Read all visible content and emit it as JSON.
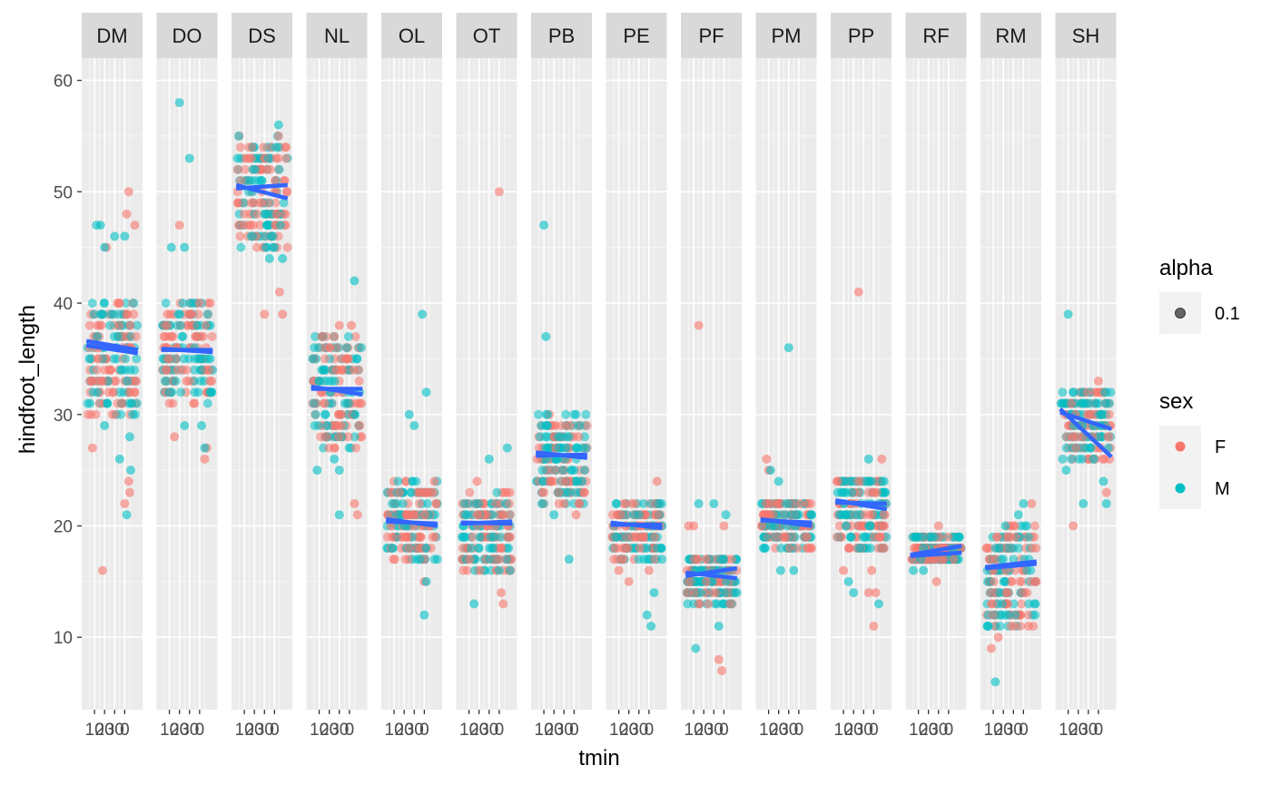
{
  "chart_data": {
    "type": "scatter",
    "facets": [
      "DM",
      "DO",
      "DS",
      "NL",
      "OL",
      "OT",
      "PB",
      "PE",
      "PF",
      "PM",
      "PP",
      "RF",
      "RM",
      "SH"
    ],
    "xlabel": "tmin",
    "ylabel": "hindfoot_length",
    "x_tick_labels": [
      "10",
      "20",
      "30",
      "0"
    ],
    "y_ticks": [
      10,
      20,
      30,
      40,
      50,
      60
    ],
    "ylim": [
      3.5,
      62
    ],
    "grid": true,
    "legend_position": "right",
    "colors": {
      "F": "#F8766D",
      "M": "#00BFC4",
      "trend": "#3366FF",
      "panel_bg": "#EBEBEB",
      "strip_bg": "#D9D9D9",
      "alpha_key": "#4d4d4d"
    },
    "legend": {
      "alpha": {
        "title": "alpha",
        "entries": [
          "0.1"
        ]
      },
      "sex": {
        "title": "sex",
        "entries": [
          "F",
          "M"
        ]
      }
    },
    "series": [
      {
        "facet": "DM",
        "core": {
          "ymin": 30,
          "ymax": 40,
          "center": 36
        },
        "trend_F": [
          36.2,
          35.5
        ],
        "trend_M": [
          36.6,
          35.8
        ],
        "outliers_F": [
          [
            8,
            27
          ],
          [
            18,
            16
          ],
          [
            22,
            45
          ],
          [
            35,
            38
          ],
          [
            40,
            22
          ],
          [
            42,
            48
          ],
          [
            44,
            50
          ],
          [
            44,
            24
          ],
          [
            45,
            23
          ],
          [
            50,
            47
          ]
        ],
        "outliers_M": [
          [
            12,
            47
          ],
          [
            16,
            47
          ],
          [
            20,
            45
          ],
          [
            20,
            29
          ],
          [
            30,
            46
          ],
          [
            35,
            26
          ],
          [
            40,
            46
          ],
          [
            42,
            21
          ],
          [
            45,
            28
          ],
          [
            46,
            25
          ],
          [
            48,
            30
          ]
        ]
      },
      {
        "facet": "DO",
        "core": {
          "ymin": 31,
          "ymax": 40,
          "center": 35.5
        },
        "trend_F": [
          35.9,
          35.6
        ],
        "trend_M": [
          35.8,
          35.8
        ],
        "outliers_F": [
          [
            15,
            28
          ],
          [
            20,
            47
          ],
          [
            40,
            40
          ],
          [
            45,
            26
          ],
          [
            47,
            27
          ]
        ],
        "outliers_M": [
          [
            12,
            45
          ],
          [
            20,
            58
          ],
          [
            25,
            45
          ],
          [
            25,
            29
          ],
          [
            30,
            53
          ],
          [
            42,
            29
          ],
          [
            45,
            27
          ]
        ]
      },
      {
        "facet": "DS",
        "core": {
          "ymin": 45,
          "ymax": 55,
          "center": 50.5
        },
        "trend_F": [
          50.6,
          49.4
        ],
        "trend_M": [
          50.3,
          50.6
        ],
        "outliers_F": [
          [
            12,
            53
          ],
          [
            30,
            39
          ],
          [
            45,
            41
          ],
          [
            48,
            39
          ]
        ],
        "outliers_M": [
          [
            35,
            44
          ],
          [
            40,
            45
          ],
          [
            44,
            56
          ],
          [
            48,
            44
          ]
        ]
      },
      {
        "facet": "NL",
        "core": {
          "ymin": 27,
          "ymax": 37,
          "center": 32.5
        },
        "trend_F": [
          32.5,
          31.8
        ],
        "trend_M": [
          32.3,
          32.3
        ],
        "outliers_F": [
          [
            25,
            37
          ],
          [
            30,
            38
          ],
          [
            42,
            38
          ],
          [
            45,
            22
          ],
          [
            48,
            21
          ],
          [
            50,
            31
          ]
        ],
        "outliers_M": [
          [
            8,
            25
          ],
          [
            25,
            26
          ],
          [
            30,
            21
          ],
          [
            30,
            25
          ],
          [
            45,
            42
          ]
        ]
      },
      {
        "facet": "OL",
        "core": {
          "ymin": 17,
          "ymax": 24,
          "center": 20.5
        },
        "trend_F": [
          20.6,
          20.0
        ],
        "trend_M": [
          20.4,
          20.2
        ],
        "outliers_F": [
          [
            35,
            23
          ],
          [
            40,
            15
          ],
          [
            50,
            24
          ]
        ],
        "outliers_M": [
          [
            25,
            30
          ],
          [
            30,
            29
          ],
          [
            38,
            39
          ],
          [
            40,
            12
          ],
          [
            42,
            32
          ],
          [
            42,
            15
          ]
        ]
      },
      {
        "facet": "OT",
        "core": {
          "ymin": 16,
          "ymax": 23,
          "center": 20.3
        },
        "trend_F": [
          20.3,
          20.2
        ],
        "trend_M": [
          20.2,
          20.4
        ],
        "outliers_F": [
          [
            18,
            24
          ],
          [
            40,
            50
          ],
          [
            42,
            14
          ],
          [
            44,
            13
          ]
        ],
        "outliers_M": [
          [
            15,
            13
          ],
          [
            30,
            26
          ],
          [
            40,
            16
          ],
          [
            48,
            27
          ]
        ]
      },
      {
        "facet": "PB",
        "core": {
          "ymin": 22,
          "ymax": 30,
          "center": 26.3
        },
        "trend_F": [
          26.6,
          26.1
        ],
        "trend_M": [
          26.3,
          26.4
        ],
        "outliers_F": [
          [
            25,
            23
          ],
          [
            30,
            22
          ],
          [
            42,
            21
          ],
          [
            45,
            22
          ]
        ],
        "outliers_M": [
          [
            8,
            22
          ],
          [
            10,
            47
          ],
          [
            12,
            37
          ],
          [
            20,
            21
          ],
          [
            35,
            17
          ]
        ]
      },
      {
        "facet": "PE",
        "core": {
          "ymin": 17,
          "ymax": 22,
          "center": 20.1
        },
        "trend_F": [
          20.3,
          19.8
        ],
        "trend_M": [
          20.1,
          20.1
        ],
        "outliers_F": [
          [
            10,
            16
          ],
          [
            20,
            15
          ],
          [
            40,
            16
          ],
          [
            48,
            24
          ]
        ],
        "outliers_M": [
          [
            38,
            12
          ],
          [
            42,
            11
          ],
          [
            45,
            14
          ]
        ]
      },
      {
        "facet": "PF",
        "core": {
          "ymin": 13,
          "ymax": 17.5,
          "center": 15.7
        },
        "trend_F": [
          15.8,
          15.3
        ],
        "trend_M": [
          15.5,
          16.2
        ],
        "outliers_F": [
          [
            5,
            20
          ],
          [
            10,
            20
          ],
          [
            15,
            38
          ],
          [
            35,
            8
          ],
          [
            38,
            7
          ],
          [
            40,
            20
          ]
        ],
        "outliers_M": [
          [
            12,
            9
          ],
          [
            15,
            22
          ],
          [
            30,
            22
          ],
          [
            35,
            11
          ],
          [
            42,
            21
          ]
        ]
      },
      {
        "facet": "PM",
        "core": {
          "ymin": 18,
          "ymax": 22.5,
          "center": 20.5
        },
        "trend_F": [
          20.6,
          20.0
        ],
        "trend_M": [
          20.5,
          20.3
        ],
        "outliers_F": [
          [
            8,
            26
          ],
          [
            10,
            25
          ],
          [
            48,
            18
          ]
        ],
        "outliers_M": [
          [
            12,
            25
          ],
          [
            20,
            24
          ],
          [
            22,
            16
          ],
          [
            30,
            36
          ],
          [
            35,
            16
          ]
        ]
      },
      {
        "facet": "PP",
        "core": {
          "ymin": 18,
          "ymax": 24.5,
          "center": 22
        },
        "trend_F": [
          22.3,
          21.5
        ],
        "trend_M": [
          22.1,
          22.0
        ],
        "outliers_F": [
          [
            10,
            16
          ],
          [
            25,
            41
          ],
          [
            35,
            14
          ],
          [
            38,
            16
          ],
          [
            40,
            11
          ],
          [
            42,
            14
          ],
          [
            48,
            26
          ]
        ],
        "outliers_M": [
          [
            15,
            15
          ],
          [
            20,
            14
          ],
          [
            35,
            26
          ],
          [
            45,
            13
          ]
        ]
      },
      {
        "facet": "RF",
        "core": {
          "ymin": 16.5,
          "ymax": 19.2,
          "center": 17.7
        },
        "trend_F": [
          17.3,
          17.6
        ],
        "trend_M": [
          17.4,
          18.2
        ],
        "outliers_F": [
          [
            28,
            15
          ],
          [
            30,
            20
          ],
          [
            45,
            17
          ]
        ],
        "outliers_M": [
          [
            5,
            16
          ],
          [
            15,
            16
          ]
        ]
      },
      {
        "facet": "RM",
        "core": {
          "ymin": 11,
          "ymax": 20,
          "center": 16.3
        },
        "trend_F": [
          16.2,
          16.6
        ],
        "trend_M": [
          16.3,
          16.8
        ],
        "outliers_F": [
          [
            8,
            9
          ],
          [
            15,
            10
          ],
          [
            30,
            20
          ],
          [
            45,
            11
          ],
          [
            48,
            22
          ]
        ],
        "outliers_M": [
          [
            5,
            11
          ],
          [
            12,
            6
          ],
          [
            22,
            20
          ],
          [
            35,
            21
          ],
          [
            40,
            22
          ]
        ]
      },
      {
        "facet": "SH",
        "core": {
          "ymin": 26,
          "ymax": 32,
          "center": 29
        },
        "trend_F": [
          30.2,
          28.7
        ],
        "trend_M": [
          30.5,
          26.2
        ],
        "outliers_F": [
          [
            15,
            20
          ],
          [
            40,
            33
          ],
          [
            48,
            23
          ]
        ],
        "outliers_M": [
          [
            8,
            25
          ],
          [
            10,
            39
          ],
          [
            25,
            22
          ],
          [
            45,
            24
          ],
          [
            48,
            22
          ],
          [
            50,
            27
          ]
        ]
      }
    ]
  }
}
